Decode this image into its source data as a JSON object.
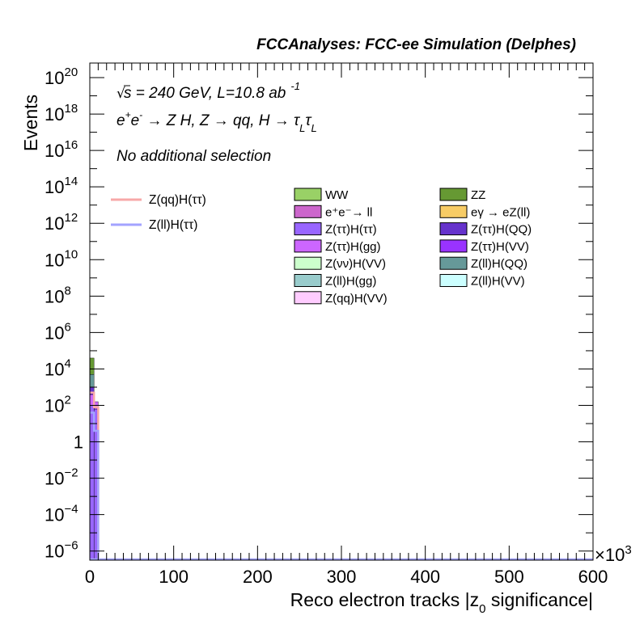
{
  "chart_data": {
    "type": "histogram",
    "title": "FCCAnalyses: FCC-ee Simulation (Delphes)",
    "xlabel": "Reco electron tracks |z",
    "xlabel_sub": "0",
    "xlabel_tail": " significance|",
    "ylabel": "Events",
    "x_multiplier_base": "×10",
    "x_multiplier_exp": "3",
    "xlim": [
      0,
      600
    ],
    "ylim_log10": [
      -6.5,
      20.8
    ],
    "y_scale": "log",
    "x_ticks": [
      0,
      100,
      200,
      300,
      400,
      500,
      600
    ],
    "y_ticks": [
      {
        "exp": -6,
        "base": "10",
        "sup": "−6"
      },
      {
        "exp": -4,
        "base": "10",
        "sup": "−4"
      },
      {
        "exp": -2,
        "base": "10",
        "sup": "−2"
      },
      {
        "exp": 0,
        "base": "1",
        "sup": ""
      },
      {
        "exp": 2,
        "base": "10",
        "sup": "2"
      },
      {
        "exp": 4,
        "base": "10",
        "sup": "4"
      },
      {
        "exp": 6,
        "base": "10",
        "sup": "6"
      },
      {
        "exp": 8,
        "base": "10",
        "sup": "8"
      },
      {
        "exp": 10,
        "base": "10",
        "sup": "10"
      },
      {
        "exp": 12,
        "base": "10",
        "sup": "12"
      },
      {
        "exp": 14,
        "base": "10",
        "sup": "14"
      },
      {
        "exp": 16,
        "base": "10",
        "sup": "16"
      },
      {
        "exp": 18,
        "base": "10",
        "sup": "18"
      },
      {
        "exp": 20,
        "base": "10",
        "sup": "20"
      }
    ],
    "annotations": {
      "energy_sqrt": "√",
      "energy_s": "s",
      "energy_rest": " = 240 GeV, L=10.8 ab",
      "energy_sup": "-1",
      "process_a": "e",
      "process_a_sup": "+",
      "process_b": "e",
      "process_b_sup": "-",
      "process_rest": " → Z H, Z  → qq, H  →  τ",
      "process_sub1": "L",
      "process_tau2": "τ",
      "process_sub2": "L",
      "selection": "No additional selection"
    },
    "signals": [
      {
        "name": "Z(qq)H(ττ)",
        "color": "#f7a8a8",
        "x": [
          0,
          5,
          10
        ],
        "log10_y": [
          2.7,
          1.9
        ]
      },
      {
        "name": "Z(ll)H(ττ)",
        "color": "#a3a3ff",
        "x": [
          0,
          5,
          10
        ],
        "log10_y": [
          1.6,
          0.6
        ]
      }
    ],
    "backgrounds": [
      {
        "name": "WW",
        "color": "#99d166"
      },
      {
        "name": "ZZ",
        "color": "#669933"
      },
      {
        "name": "e⁺e⁻→ ll",
        "color": "#cc66cc"
      },
      {
        "name": "eγ → eZ(ll)",
        "color": "#f7cc66"
      },
      {
        "name": "Z(ττ)H(ττ)",
        "color": "#9966ff"
      },
      {
        "name": "Z(ττ)H(QQ)",
        "color": "#6633cc"
      },
      {
        "name": "Z(ττ)H(gg)",
        "color": "#cc66ff"
      },
      {
        "name": "Z(ττ)H(VV)",
        "color": "#9933ff"
      },
      {
        "name": "Z(νν)H(VV)",
        "color": "#ccffcc"
      },
      {
        "name": "Z(ll)H(QQ)",
        "color": "#669999"
      },
      {
        "name": "Z(ll)H(gg)",
        "color": "#99cccc"
      },
      {
        "name": "Z(ll)H(VV)",
        "color": "#ccffff"
      },
      {
        "name": "Z(qq)H(VV)",
        "color": "#ffccff"
      }
    ],
    "stack_bins": {
      "x": [
        0,
        5,
        10
      ],
      "log10_top": [
        4.6,
        2.2
      ]
    },
    "stack_layers_bin0": [
      {
        "color": "#9966ff",
        "log10_lo": -6.5,
        "log10_hi": 2.0
      },
      {
        "color": "#cc66ff",
        "log10_lo": 2.0,
        "log10_hi": 2.6
      },
      {
        "color": "#6633cc",
        "log10_lo": 2.6,
        "log10_hi": 3.0
      },
      {
        "color": "#669999",
        "log10_lo": 3.0,
        "log10_hi": 3.7
      },
      {
        "color": "#669933",
        "log10_lo": 3.7,
        "log10_hi": 4.6
      }
    ],
    "stack_layers_bin1": [
      {
        "color": "#9966ff",
        "log10_lo": -6.5,
        "log10_hi": 1.8
      },
      {
        "color": "#cc66ff",
        "log10_lo": 1.8,
        "log10_hi": 2.2
      }
    ]
  }
}
